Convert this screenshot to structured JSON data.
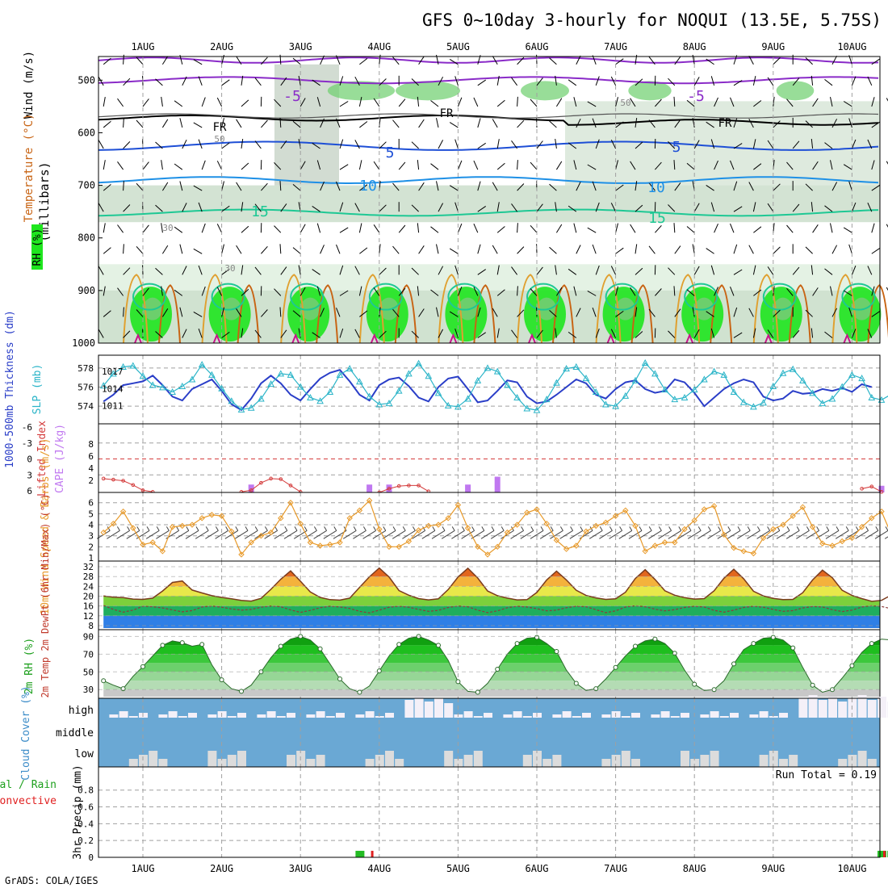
{
  "title": "GFS 0~10day 3-hourly for NOQUI (13.5E, 5.75S)",
  "credit": "GrADS: COLA/IGES",
  "dates": [
    "1AUG",
    "2AUG",
    "3AUG",
    "4AUG",
    "5AUG",
    "6AUG",
    "7AUG",
    "8AUG",
    "9AUG",
    "10AUG"
  ],
  "colors": {
    "rh_light": "#e4f2e4",
    "rh_mid": "#c8dcc8",
    "rh_gray": "#b4c4b4",
    "rh_green": "#6ccf6c",
    "rh_bright": "#1ee61e",
    "temp_purple": "#8a2bc8",
    "temp_black": "#000000",
    "temp_blue": "#1e4fd6",
    "temp_lightblue": "#1e90e6",
    "temp_teal": "#1ec894",
    "temp_orange": "#e0a030",
    "temp_darkorange": "#c86414",
    "temp_magenta": "#c8148c",
    "thickness": "#2a3ec8",
    "slp": "#2ab4c8",
    "cape": "#c078f0",
    "lifted": "#d43c3c",
    "wind": "#e89a2a",
    "cloud_bg": "#6aa8d4",
    "cloud_bar": "#dcdcdc"
  },
  "chart_data": [
    {
      "type": "heatmap",
      "id": "upper_air",
      "ylabel": "(millibars)",
      "legend_labels": [
        "Wind (m/s)",
        "Temperature (°C)",
        "RH (%)"
      ],
      "yticks": [
        500,
        600,
        700,
        800,
        900,
        1000
      ],
      "contour_labels": [
        "-5",
        "FR",
        "5",
        "10",
        "15",
        "30",
        "50"
      ]
    },
    {
      "type": "line",
      "id": "thickness_slp",
      "ylabel_left": "1000-500mb Thickness (dm)",
      "ylabel_right": "SLP (mb)",
      "yticks_left": [
        574,
        576,
        578
      ],
      "yticks_right": [
        1011,
        1014,
        1017
      ],
      "series": [
        {
          "name": "Thickness",
          "values": [
            574.5,
            575.2,
            576.2,
            576.4,
            576.6,
            577.2,
            576.2,
            575.0,
            574.6,
            575.8,
            576.3,
            576.8,
            575.6,
            574.2,
            573.6,
            574.8,
            576.4,
            577.2,
            576.4,
            575.2,
            574.6,
            575.8,
            576.9,
            577.5,
            577.8,
            576.6,
            575.2,
            574.6,
            576.2,
            576.8,
            577.0,
            576.1,
            574.9,
            574.5,
            576.0,
            576.9,
            577.1,
            575.8,
            574.4,
            574.6,
            575.6,
            576.7,
            576.5,
            575.0,
            574.3,
            574.5,
            575.2,
            576.0,
            576.8,
            576.4,
            575.2,
            574.8,
            575.8,
            576.5,
            576.7,
            575.8,
            575.4,
            575.6,
            576.8,
            576.5,
            575.4,
            574.0,
            574.9,
            575.8,
            576.4,
            576.8,
            576.5,
            575.0,
            574.6,
            574.8,
            575.6,
            575.3,
            575.4,
            575.8,
            575.6,
            575.9,
            575.5,
            576.3,
            576.0
          ]
        },
        {
          "name": "SLP",
          "values": [
            1014.5,
            1016.6,
            1017.8,
            1018.0,
            1016.2,
            1014.6,
            1014.2,
            1013.4,
            1014.4,
            1015.6,
            1018.2,
            1016.4,
            1014.0,
            1011.8,
            1010.3,
            1010.6,
            1012.2,
            1014.8,
            1016.6,
            1016.4,
            1014.3,
            1012.4,
            1011.8,
            1013.4,
            1016.4,
            1017.5,
            1015.2,
            1012.6,
            1011.2,
            1011.4,
            1013.6,
            1016.6,
            1018.4,
            1016.2,
            1013.2,
            1011.0,
            1010.8,
            1012.2,
            1015.4,
            1017.6,
            1017.0,
            1014.6,
            1012.4,
            1010.5,
            1010.2,
            1012.1,
            1015.0,
            1017.5,
            1017.8,
            1015.8,
            1013.4,
            1011.2,
            1010.9,
            1012.7,
            1015.4,
            1018.5,
            1016.6,
            1013.8,
            1012.1,
            1012.4,
            1013.8,
            1015.6,
            1017.0,
            1016.4,
            1013.4,
            1011.6,
            1010.8,
            1011.5,
            1014.4,
            1016.7,
            1017.4,
            1015.4,
            1013.2,
            1011.4,
            1012.2,
            1014.3,
            1016.4,
            1015.8,
            1012.4,
            1012.0,
            1013.0
          ]
        }
      ]
    },
    {
      "type": "bar",
      "id": "cape_li",
      "ylabel_left": "Lifted Index",
      "ylabel_right": "CAPE (J/kg)",
      "yticks_left": [
        "-6",
        "-3",
        "0",
        "3",
        "6"
      ],
      "yticks_right": [
        2,
        4,
        6,
        8
      ],
      "series": [
        {
          "name": "CAPE",
          "values": [
            [
              15,
              1.3
            ],
            [
              27,
              1.3
            ],
            [
              29,
              1.3
            ],
            [
              37,
              1.3
            ],
            [
              40,
              2.6
            ],
            [
              79,
              1.1
            ],
            [
              87,
              1.3
            ],
            [
              89,
              9.0
            ]
          ]
        },
        {
          "name": "Lifted Index",
          "values": [
            [
              0,
              3.7
            ],
            [
              1,
              3.9
            ],
            [
              2,
              4.1
            ],
            [
              3,
              4.9
            ],
            [
              4,
              5.9
            ],
            [
              5,
              6.2
            ],
            [
              14,
              6.2
            ],
            [
              15,
              5.9
            ],
            [
              16,
              4.5
            ],
            [
              17,
              3.7
            ],
            [
              18,
              3.8
            ],
            [
              19,
              5.0
            ],
            [
              20,
              6.2
            ],
            [
              28,
              6.3
            ],
            [
              29,
              5.6
            ],
            [
              30,
              5.1
            ],
            [
              31,
              5.0
            ],
            [
              32,
              5.0
            ],
            [
              33,
              6.1
            ],
            [
              77,
              5.6
            ],
            [
              78,
              5.2
            ],
            [
              79,
              6.2
            ],
            [
              86,
              6.2
            ],
            [
              87,
              5.0
            ],
            [
              88,
              3.9
            ],
            [
              89,
              3.8
            ],
            [
              90,
              5.4
            ],
            [
              91,
              6.2
            ],
            [
              97,
              6.2
            ],
            [
              98,
              5.6
            ],
            [
              99,
              5.3
            ],
            [
              100,
              6.2
            ]
          ]
        }
      ]
    },
    {
      "type": "line",
      "id": "wind10m",
      "ylabel": "10m Wind Speed & Barbs (m/s)",
      "yticks": [
        1,
        2,
        3,
        4,
        5,
        6
      ],
      "series": [
        {
          "name": "Wind Speed",
          "values": [
            3.3,
            4.1,
            5.2,
            3.7,
            2.2,
            2.4,
            1.6,
            3.8,
            3.9,
            4.0,
            4.6,
            4.9,
            4.8,
            3.4,
            1.3,
            2.4,
            3.0,
            3.3,
            4.6,
            6.0,
            4.1,
            2.4,
            2.1,
            2.2,
            2.4,
            4.6,
            5.3,
            6.2,
            3.6,
            2.0,
            2.0,
            2.5,
            3.5,
            3.9,
            4.0,
            4.6,
            5.8,
            3.7,
            2.0,
            1.3,
            2.0,
            3.3,
            4.0,
            5.1,
            5.4,
            4.1,
            2.6,
            1.8,
            2.1,
            3.4,
            3.9,
            4.2,
            4.8,
            5.3,
            3.9,
            1.6,
            2.1,
            2.4,
            2.4,
            3.6,
            4.4,
            5.4,
            5.7,
            3.1,
            1.9,
            1.6,
            1.4,
            2.8,
            3.6,
            4.0,
            4.8,
            5.6,
            3.8,
            2.3,
            2.1,
            2.5,
            2.8,
            3.8,
            4.6,
            5.2,
            3.1,
            2.6,
            2.1,
            1.7,
            2.4
          ]
        }
      ]
    },
    {
      "type": "area",
      "id": "temp2m",
      "ylabel": "2m Temp 2m DewPt (6hr Min/Max) (°C)",
      "yticks": [
        8,
        12,
        16,
        20,
        24,
        28,
        32
      ],
      "series": [
        {
          "name": "Temperature",
          "values": [
            20.1,
            19.6,
            19.4,
            18.8,
            18.7,
            19.2,
            22.1,
            25.6,
            26.2,
            22.5,
            21.3,
            20.2,
            19.5,
            18.9,
            18.3,
            18.0,
            19.1,
            22.8,
            26.9,
            30.3,
            26.1,
            21.7,
            19.5,
            18.6,
            18.4,
            19.2,
            23.6,
            27.9,
            31.5,
            27.8,
            22.3,
            20.4,
            19.0,
            18.5,
            18.9,
            22.7,
            27.8,
            31.4,
            27.4,
            22.1,
            20.2,
            19.2,
            18.5,
            18.6,
            21.5,
            26.6,
            30.2,
            26.6,
            22.4,
            20.3,
            19.3,
            18.7,
            18.9,
            21.6,
            27.2,
            30.8,
            26.8,
            22.2,
            20.4,
            19.4,
            18.8,
            19.0,
            22.2,
            27.3,
            31.0,
            27.1,
            22.0,
            20.1,
            19.1,
            18.6,
            18.7,
            21.4,
            26.6,
            30.6,
            27.5,
            22.4,
            20.3,
            19.0,
            17.9,
            18.3,
            20.5
          ]
        },
        {
          "name": "DewPt",
          "values": [
            16.2,
            14.6,
            13.5,
            14.3,
            15.9,
            15.7,
            15.2,
            14.4,
            13.6,
            14.1,
            15.6,
            16.0,
            15.5,
            14.8,
            14.3,
            14.6,
            15.5,
            16.0,
            15.7,
            14.4,
            13.4,
            14.2,
            15.3,
            15.9,
            15.6,
            15.0,
            13.8,
            13.2,
            14.3,
            15.5,
            15.9,
            15.5,
            14.6,
            13.8,
            14.2,
            15.4,
            16.0,
            15.7,
            14.3,
            13.3,
            14.0,
            15.3,
            15.9,
            15.6,
            14.9,
            14.0,
            14.3,
            15.3,
            15.9,
            15.7,
            14.5,
            13.3,
            14.0,
            15.6,
            16.1,
            15.7,
            14.7,
            14.0,
            14.5,
            15.4,
            15.9,
            15.6,
            14.2,
            13.5,
            14.3,
            15.4,
            15.9,
            15.5,
            14.6,
            13.8,
            14.1,
            15.2,
            15.8,
            15.6,
            14.5,
            13.7,
            14.3,
            15.6,
            16.1,
            15.8,
            14.9
          ]
        }
      ]
    },
    {
      "type": "area",
      "id": "rh2m",
      "ylabel": "2m RH (%)",
      "yticks": [
        30,
        50,
        70,
        90
      ],
      "series": [
        {
          "name": "RH",
          "values": [
            40,
            35,
            31,
            45,
            56,
            68,
            80,
            85,
            83,
            79,
            81,
            58,
            41,
            31,
            28,
            35,
            50,
            66,
            79,
            87,
            90,
            86,
            76,
            59,
            42,
            31,
            27,
            34,
            51,
            68,
            81,
            88,
            90,
            86,
            80,
            63,
            39,
            28,
            27,
            37,
            53,
            70,
            82,
            88,
            89,
            82,
            73,
            52,
            37,
            29,
            31,
            42,
            55,
            68,
            79,
            85,
            87,
            82,
            71,
            52,
            36,
            29,
            30,
            40,
            59,
            75,
            82,
            88,
            89,
            86,
            77,
            55,
            35,
            27,
            30,
            43,
            57,
            72,
            82,
            87,
            86
          ]
        }
      ]
    },
    {
      "type": "bar",
      "id": "cloud",
      "ylabel": "Cloud Cover (%)",
      "yticks": [
        "low",
        "middle",
        "high"
      ]
    },
    {
      "type": "bar",
      "id": "precip",
      "ylabel": "3hr Precip (mm)",
      "legend_labels": [
        "Total / Rain",
        "Convective"
      ],
      "run_total": "Run Total = 0.19",
      "yticks": [
        "0",
        "0.2",
        "0.4",
        "0.6",
        "0.8"
      ],
      "series": [
        {
          "name": "Total",
          "values": [
            [
              26,
              0.02
            ],
            [
              79,
              0.02
            ],
            [
              80,
              0.02
            ]
          ]
        },
        {
          "name": "Convective",
          "values": [
            [
              27,
              0.02
            ],
            [
              79,
              0.02
            ]
          ]
        }
      ]
    }
  ]
}
